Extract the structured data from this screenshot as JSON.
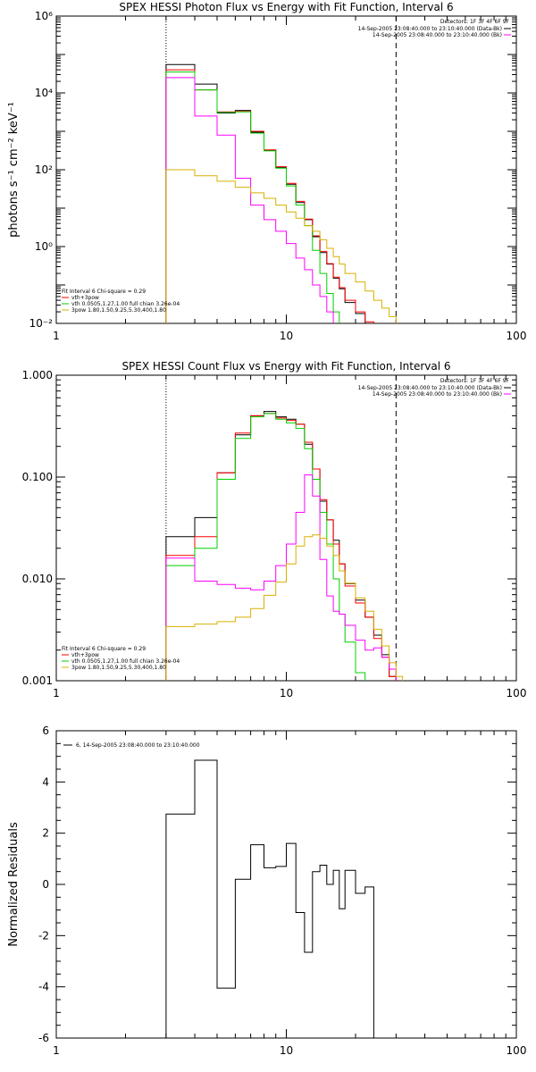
{
  "chart_data": [
    {
      "type": "line",
      "title": "SPEX HESSI Photon Flux vs Energy with Fit Function, Interval 6",
      "xlabel": "",
      "ylabel": "photons s⁻¹ cm⁻² keV⁻¹",
      "xscale": "log",
      "yscale": "log",
      "xlim": [
        1,
        100
      ],
      "ylim": [
        0.01,
        1000000
      ],
      "x_ticks": [
        "1",
        "10",
        "100"
      ],
      "y_ticks": [
        "10⁻²",
        "10⁰",
        "10²",
        "10⁴",
        "10⁶"
      ],
      "vlines": [
        {
          "x": 3,
          "style": "dotted"
        },
        {
          "x": 30,
          "style": "dashed"
        }
      ],
      "legend_top_right": {
        "detectors": "Detectors: 1F 3F 4F 6F 9F",
        "entries": [
          {
            "text": "14-Sep-2005 23:08:40.000 to 23:10:40.000 (Data-Bk)",
            "color": "#000000"
          },
          {
            "text": "14-Sep-2005 23:08:40.000 to 23:10:40.000 (Bk)",
            "color": "#ff00ff"
          }
        ]
      },
      "legend_bottom_left": {
        "header": "Fit Interval 6   Chi-square = 0.29",
        "entries": [
          {
            "text": "vth+3pow",
            "color": "#ff0000"
          },
          {
            "text": "vth 0.0505,1.27,1.00  full chian 3.26e-04",
            "color": "#00d000"
          },
          {
            "text": "3pow 1.80,1.50,9.25,5.30,400,1.80",
            "color": "#d8b000"
          }
        ]
      },
      "bin_edges": [
        3,
        4,
        5,
        6,
        7,
        8,
        9,
        10,
        11,
        12,
        13,
        14,
        15,
        16,
        17,
        18,
        20,
        22,
        24,
        26,
        28,
        30,
        32
      ],
      "series": [
        {
          "color": "#000000",
          "values": [
            55000,
            17000,
            3000,
            3500,
            950,
            320,
            115,
            42,
            14,
            5,
            1.8,
            0.7,
            0.35,
            0.15,
            0.08,
            0.035,
            0.018,
            0.01,
            null,
            null,
            null,
            null
          ]
        },
        {
          "color": "#ff0000",
          "values": [
            40000,
            12000,
            3200,
            3300,
            1000,
            330,
            120,
            44,
            15,
            5.2,
            1.9,
            0.75,
            0.36,
            0.16,
            0.085,
            0.04,
            0.02,
            0.011,
            null,
            null,
            null,
            null
          ]
        },
        {
          "color": "#00d000",
          "values": [
            35000,
            12000,
            3100,
            3200,
            900,
            310,
            110,
            38,
            12,
            3.5,
            0.8,
            0.2,
            0.06,
            0.02,
            null,
            null,
            null,
            null,
            null,
            null,
            null,
            null
          ]
        },
        {
          "color": "#ff00ff",
          "values": [
            25000,
            2500,
            800,
            60,
            12,
            5,
            2.5,
            1.2,
            0.5,
            0.25,
            0.1,
            0.05,
            0.02,
            null,
            null,
            null,
            null,
            null,
            null,
            null,
            null,
            null
          ]
        },
        {
          "color": "#d8b000",
          "values": [
            100,
            70,
            50,
            35,
            25,
            18,
            12,
            8,
            5.5,
            3.5,
            2.5,
            1.5,
            0.9,
            0.55,
            0.35,
            0.2,
            0.12,
            0.07,
            0.04,
            0.025,
            0.015,
            null
          ]
        }
      ]
    },
    {
      "type": "line",
      "title": "SPEX HESSI Count Flux vs Energy with Fit Function, Interval 6",
      "xlabel": "",
      "ylabel": "",
      "xscale": "log",
      "yscale": "log",
      "xlim": [
        1,
        100
      ],
      "ylim": [
        0.001,
        1
      ],
      "x_ticks": [
        "1",
        "10",
        "100"
      ],
      "y_ticks": [
        "0.001",
        "0.010",
        "0.100",
        "1.000"
      ],
      "vlines": [
        {
          "x": 3,
          "style": "dotted"
        },
        {
          "x": 30,
          "style": "dashed"
        }
      ],
      "legend_top_right": {
        "detectors": "Detectors: 1F 3F 4F 6F 9F",
        "entries": [
          {
            "text": "14-Sep-2005 23:08:40.000 to 23:10:40.000 (Data-Bk)",
            "color": "#000000"
          },
          {
            "text": "14-Sep-2005 23:08:40.000 to 23:10:40.000 (Bk)",
            "color": "#ff00ff"
          }
        ]
      },
      "legend_bottom_left": {
        "header": "Fit Interval 6   Chi-square = 0.29",
        "entries": [
          {
            "text": "vth+3pow",
            "color": "#ff0000"
          },
          {
            "text": "vth 0.0505,1.27,1.00  full chian 3.26e-04",
            "color": "#00d000"
          },
          {
            "text": "3pow 1.80,1.50,9.25,5.30,400,1.80",
            "color": "#d8b000"
          }
        ]
      },
      "bin_edges": [
        3,
        4,
        5,
        6,
        7,
        8,
        9,
        10,
        11,
        12,
        13,
        14,
        15,
        16,
        17,
        18,
        20,
        22,
        24,
        26,
        28,
        30,
        32
      ],
      "series": [
        {
          "color": "#000000",
          "values": [
            0.026,
            0.04,
            0.11,
            0.26,
            0.4,
            0.44,
            0.39,
            0.37,
            0.33,
            0.21,
            0.12,
            0.058,
            0.038,
            0.024,
            0.014,
            0.009,
            0.0062,
            0.0042,
            0.0028,
            0.0018,
            0.0011,
            null
          ]
        },
        {
          "color": "#ff0000",
          "values": [
            0.017,
            0.026,
            0.11,
            0.27,
            0.4,
            0.42,
            0.38,
            0.36,
            0.33,
            0.22,
            0.12,
            0.06,
            0.038,
            0.022,
            0.014,
            0.0085,
            0.0058,
            0.0042,
            0.0026,
            0.0017,
            0.0011,
            null
          ]
        },
        {
          "color": "#00d000",
          "values": [
            0.0135,
            0.02,
            0.095,
            0.24,
            0.39,
            0.42,
            0.37,
            0.34,
            0.3,
            0.19,
            0.095,
            0.045,
            0.022,
            0.01,
            0.0045,
            0.0024,
            0.0012,
            null,
            null,
            null,
            null,
            null
          ]
        },
        {
          "color": "#ff00ff",
          "values": [
            0.016,
            0.0095,
            0.0088,
            0.0081,
            0.0078,
            0.0095,
            0.0135,
            0.022,
            0.045,
            0.105,
            0.065,
            0.0155,
            0.0068,
            0.0048,
            0.0045,
            0.0035,
            0.0025,
            0.002,
            0.0021,
            0.0017,
            0.0013,
            null
          ]
        },
        {
          "color": "#d8b000",
          "values": [
            0.0034,
            0.0036,
            0.0038,
            0.0042,
            0.0051,
            0.0069,
            0.0093,
            0.014,
            0.021,
            0.026,
            0.027,
            0.025,
            0.021,
            0.017,
            0.012,
            0.0091,
            0.0065,
            0.0048,
            0.0032,
            0.0022,
            0.0015,
            0.0011
          ]
        }
      ]
    },
    {
      "type": "line",
      "title": "",
      "xlabel": "",
      "ylabel": "Normalized Residuals",
      "xscale": "log",
      "yscale": "linear",
      "xlim": [
        1,
        100
      ],
      "ylim": [
        -6,
        6
      ],
      "x_ticks": [
        "1",
        "10",
        "100"
      ],
      "y_ticks": [
        "-6",
        "-4",
        "-2",
        "0",
        "2",
        "4",
        "6"
      ],
      "legend": {
        "text": "6, 14-Sep-2005 23:08:40.000 to 23:10:40.000",
        "color": "#000000"
      },
      "bin_edges": [
        3,
        4,
        5,
        6,
        7,
        8,
        9,
        10,
        11,
        12,
        13,
        14,
        15,
        16,
        17,
        18,
        20,
        22,
        24,
        26,
        28,
        30
      ],
      "series": [
        {
          "color": "#000000",
          "values": [
            2.75,
            4.85,
            -4.05,
            0.2,
            1.55,
            0.65,
            0.7,
            1.6,
            -1.1,
            -2.65,
            0.5,
            0.75,
            0.0,
            0.55,
            -0.95,
            0.55,
            -0.35,
            -0.1
          ]
        }
      ]
    }
  ]
}
